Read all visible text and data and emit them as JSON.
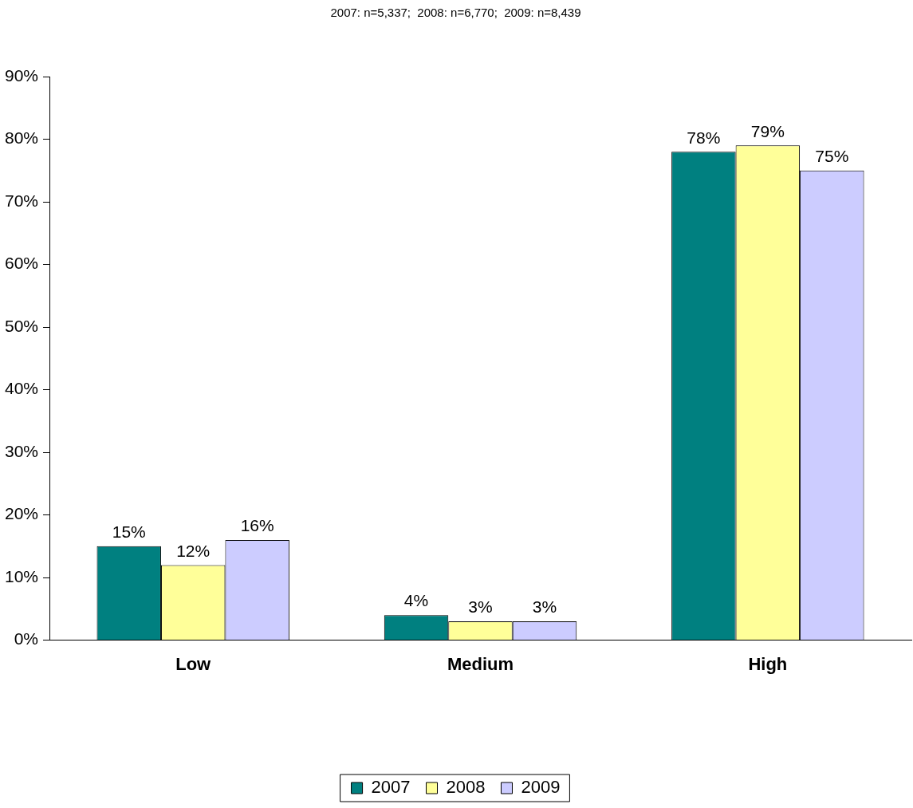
{
  "chart_data": {
    "type": "bar",
    "title": "2007: n=5,337;  2008: n=6,770;  2009: n=8,439",
    "categories": [
      "Low",
      "Medium",
      "High"
    ],
    "series": [
      {
        "name": "2007",
        "color": "#008080",
        "values": [
          15,
          4,
          78
        ],
        "value_labels": [
          "15%",
          "4%",
          "78%"
        ]
      },
      {
        "name": "2008",
        "color": "#ffff99",
        "values": [
          12,
          3,
          79
        ],
        "value_labels": [
          "12%",
          "3%",
          "79%"
        ]
      },
      {
        "name": "2009",
        "color": "#ccccff",
        "values": [
          16,
          3,
          75
        ],
        "value_labels": [
          "16%",
          "3%",
          "75%"
        ]
      }
    ],
    "ylim": [
      0,
      90
    ],
    "yticks": [
      {
        "value": 0,
        "label": "0%"
      },
      {
        "value": 10,
        "label": "10%"
      },
      {
        "value": 20,
        "label": "20%"
      },
      {
        "value": 30,
        "label": "30%"
      },
      {
        "value": 40,
        "label": "40%"
      },
      {
        "value": 50,
        "label": "50%"
      },
      {
        "value": 60,
        "label": "60%"
      },
      {
        "value": 70,
        "label": "70%"
      },
      {
        "value": 80,
        "label": "80%"
      },
      {
        "value": 90,
        "label": "90%"
      }
    ],
    "grid": false,
    "legend": "bottom"
  }
}
